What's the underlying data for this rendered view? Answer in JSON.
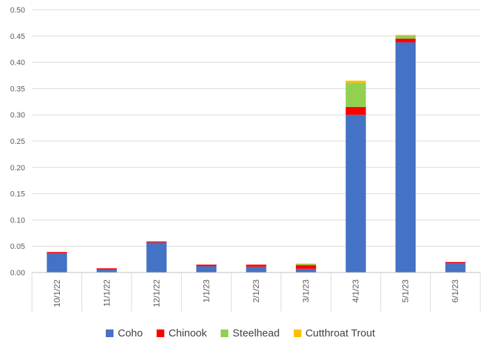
{
  "chart_data": {
    "type": "bar",
    "stacked": true,
    "categories": [
      "10/1/22",
      "11/1/22",
      "12/1/22",
      "1/1/23",
      "2/1/23",
      "3/1/23",
      "4/1/23",
      "5/1/23",
      "6/1/23"
    ],
    "series": [
      {
        "name": "Coho",
        "color": "#4472C4",
        "values": [
          0.037,
          0.006,
          0.057,
          0.012,
          0.011,
          0.007,
          0.3,
          0.438,
          0.018
        ]
      },
      {
        "name": "Chinook",
        "color": "#FF0000",
        "values": [
          0.002,
          0.002,
          0.002,
          0.003,
          0.004,
          0.007,
          0.015,
          0.007,
          0.002
        ]
      },
      {
        "name": "Steelhead",
        "color": "#92D050",
        "values": [
          0.0,
          0.0,
          0.0,
          0.0,
          0.0,
          0.002,
          0.046,
          0.006,
          0.0
        ]
      },
      {
        "name": "Cutthroat Trout",
        "color": "#FFC000",
        "values": [
          0.0,
          0.0,
          0.0,
          0.0,
          0.0,
          0.001,
          0.004,
          0.001,
          0.0
        ]
      }
    ],
    "yticks": [
      "0.00",
      "0.05",
      "0.10",
      "0.15",
      "0.20",
      "0.25",
      "0.30",
      "0.35",
      "0.40",
      "0.45",
      "0.50"
    ],
    "ylim": [
      0,
      0.5
    ],
    "grid": true,
    "legend_position": "bottom",
    "title": "",
    "xlabel": "",
    "ylabel": ""
  }
}
